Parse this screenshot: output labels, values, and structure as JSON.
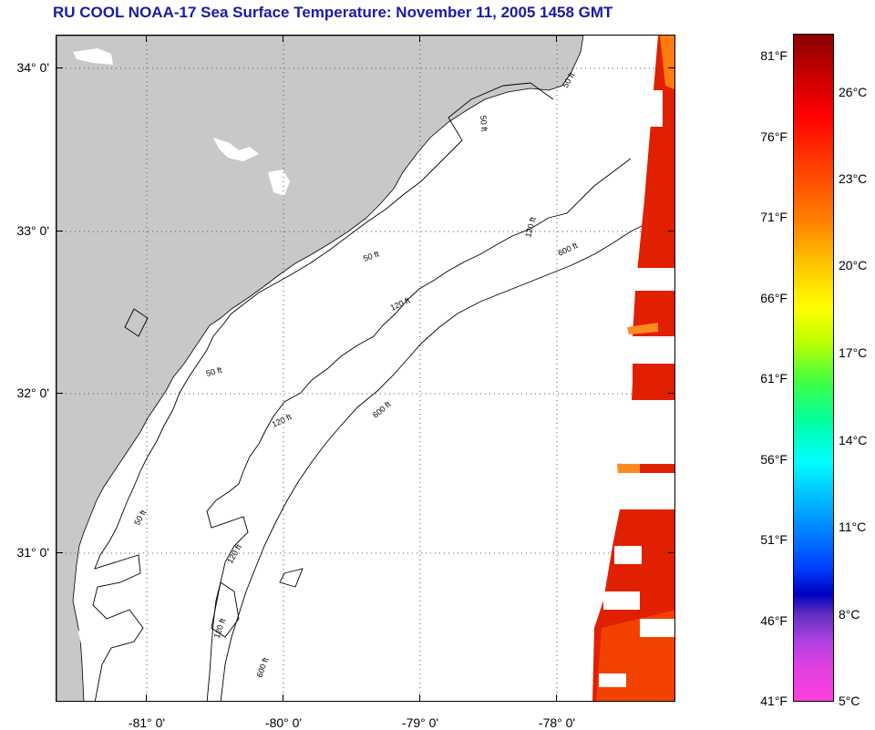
{
  "title": "RU COOL  NOAA-17  Sea Surface Temperature:  November 11, 2005 1458 GMT",
  "map": {
    "latitude_labels": [
      "34° 0'",
      "33° 0'",
      "32° 0'",
      "31° 0'"
    ],
    "longitude_labels": [
      "-81° 0'",
      "-80° 0'",
      "-79° 0'",
      "-78° 0'"
    ],
    "depth_contour_labels": [
      "50 ft",
      "50 ft",
      "50 ft",
      "50 ft",
      "50 ft",
      "120 ft",
      "120 ft",
      "120 ft",
      "120 ft",
      "120 ft",
      "600 ft",
      "600 ft",
      "600 ft"
    ],
    "colors": {
      "land": "#c8c8c8",
      "water": "#ffffff",
      "grid": "#555555",
      "contour": "#000000"
    }
  },
  "colorbar": {
    "fahrenheit_labels": [
      "81°F",
      "76°F",
      "71°F",
      "66°F",
      "61°F",
      "56°F",
      "51°F",
      "46°F",
      "41°F"
    ],
    "celsius_labels": [
      "26°C",
      "23°C",
      "20°C",
      "17°C",
      "14°C",
      "11°C",
      "8°C",
      "5°C"
    ],
    "range_celsius": [
      5,
      28
    ]
  }
}
